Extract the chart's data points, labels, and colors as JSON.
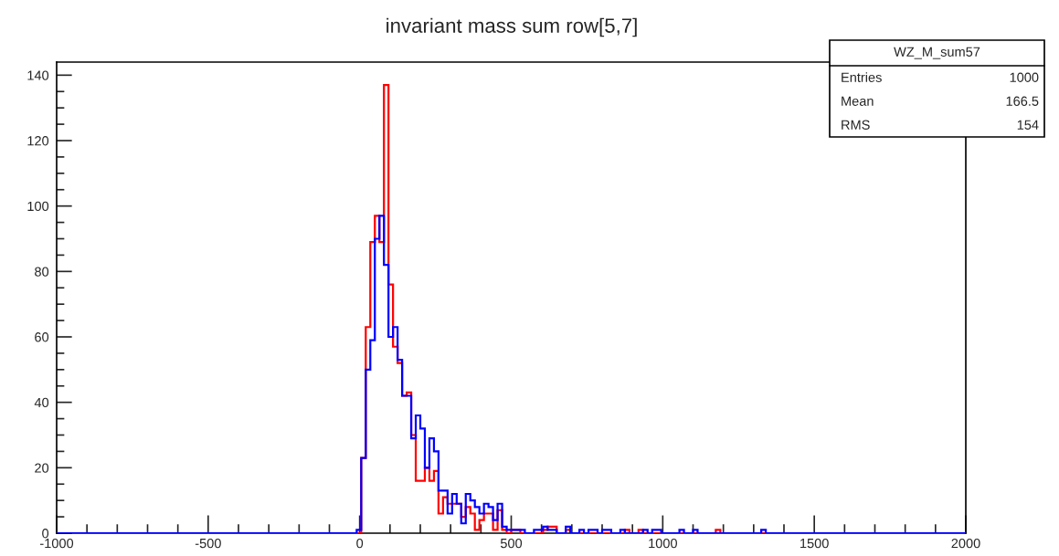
{
  "chart_data": {
    "type": "histogram",
    "title": "invariant mass sum row[5,7]",
    "bins": [
      -1000,
      -985,
      -970,
      -955,
      -940,
      -925,
      -910,
      -895,
      -880,
      -865,
      -850,
      -835,
      -820,
      -805,
      -790,
      -775,
      -760,
      -745,
      -730,
      -715,
      -700,
      -685,
      -670,
      -655,
      -640,
      -625,
      -610,
      -595,
      -580,
      -565,
      -550,
      -535,
      -520,
      -505,
      -490,
      -475,
      -460,
      -445,
      -430,
      -415,
      -400,
      -385,
      -370,
      -355,
      -340,
      -325,
      -310,
      -295,
      -280,
      -265,
      -250,
      -235,
      -220,
      -205,
      -190,
      -175,
      -160,
      -145,
      -130,
      -115,
      -100,
      -85,
      -70,
      -55,
      -40,
      -25,
      -10,
      5,
      20,
      35,
      50,
      65,
      80,
      95,
      110,
      125,
      140,
      155,
      170,
      185,
      200,
      215,
      230,
      245,
      260,
      275,
      290,
      305,
      320,
      335,
      350,
      365,
      380,
      395,
      410,
      425,
      440,
      455,
      470,
      485,
      500,
      515,
      530,
      545,
      560,
      575,
      590,
      605,
      620,
      635,
      650,
      665,
      680,
      695,
      710,
      725,
      740,
      755,
      770,
      785,
      800,
      815,
      830,
      845,
      860,
      875,
      890,
      905,
      920,
      935,
      950,
      965,
      980,
      995,
      1010,
      1025,
      1040,
      1055,
      1070,
      1085,
      1100,
      1115,
      1130,
      1145,
      1160,
      1175,
      1190,
      1205,
      1220,
      1235,
      1250,
      1265,
      1280,
      1295,
      1310,
      1325,
      1340,
      1355,
      1370,
      1385,
      1400,
      1415,
      1430,
      1445,
      1460,
      1475,
      1490,
      1505,
      1520,
      1535,
      1550,
      1565,
      1580,
      1595,
      1610,
      1625,
      1640,
      1655,
      1670,
      1685,
      1700,
      1715,
      1730,
      1745,
      1760,
      1775,
      1790,
      1805,
      1820,
      1835,
      1850,
      1865,
      1880,
      1895,
      1910,
      1925,
      1940,
      1955,
      1970,
      1985,
      2000
    ],
    "series": [
      {
        "color": "#ff0000",
        "values": [
          0,
          0,
          0,
          0,
          0,
          0,
          0,
          0,
          0,
          0,
          0,
          0,
          0,
          0,
          0,
          0,
          0,
          0,
          0,
          0,
          0,
          0,
          0,
          0,
          0,
          0,
          0,
          0,
          0,
          0,
          0,
          0,
          0,
          0,
          0,
          0,
          0,
          0,
          0,
          0,
          0,
          0,
          0,
          0,
          0,
          0,
          0,
          0,
          0,
          0,
          0,
          0,
          0,
          0,
          0,
          0,
          0,
          0,
          0,
          0,
          0,
          0,
          0,
          0,
          0,
          0,
          0,
          23,
          63,
          89,
          97,
          89,
          137,
          76,
          57,
          52,
          42,
          43,
          30,
          16,
          16,
          20,
          16,
          19,
          6,
          11,
          9,
          9,
          9,
          5,
          8,
          6,
          1,
          4,
          6,
          6,
          1,
          7,
          1,
          0,
          1,
          1,
          0,
          0,
          0,
          0,
          0,
          1,
          2,
          2,
          0,
          0,
          1,
          0,
          0,
          0,
          0,
          0,
          0,
          0,
          0,
          0,
          0,
          0,
          0,
          1,
          0,
          0,
          1,
          0,
          0,
          0,
          0,
          0,
          0,
          0,
          0,
          0,
          0,
          0,
          0,
          0,
          0,
          0,
          0,
          1,
          0,
          0,
          0,
          0,
          0,
          0,
          0,
          0,
          0,
          0,
          0,
          0,
          0,
          0,
          0,
          0,
          0,
          0,
          0,
          0,
          0,
          0,
          0,
          0,
          0,
          0,
          0,
          0,
          0,
          0,
          0,
          0,
          0,
          0,
          0,
          0,
          0,
          0,
          0,
          0,
          0,
          0,
          0,
          0,
          0,
          0,
          0,
          0,
          0,
          0,
          0,
          0,
          0,
          0
        ]
      },
      {
        "color": "#0000ff",
        "values": [
          0,
          0,
          0,
          0,
          0,
          0,
          0,
          0,
          0,
          0,
          0,
          0,
          0,
          0,
          0,
          0,
          0,
          0,
          0,
          0,
          0,
          0,
          0,
          0,
          0,
          0,
          0,
          0,
          0,
          0,
          0,
          0,
          0,
          0,
          0,
          0,
          0,
          0,
          0,
          0,
          0,
          0,
          0,
          0,
          0,
          0,
          0,
          0,
          0,
          0,
          0,
          0,
          0,
          0,
          0,
          0,
          0,
          0,
          0,
          0,
          0,
          0,
          0,
          0,
          0,
          0,
          1,
          23,
          50,
          59,
          90,
          97,
          82,
          60,
          63,
          53,
          42,
          42,
          29,
          36,
          32,
          20,
          29,
          25,
          13,
          13,
          6,
          12,
          9,
          3,
          12,
          10,
          8,
          6,
          9,
          8,
          4,
          9,
          2,
          1,
          1,
          1,
          1,
          0,
          0,
          1,
          1,
          2,
          1,
          1,
          0,
          0,
          2,
          0,
          0,
          1,
          0,
          1,
          1,
          0,
          1,
          1,
          0,
          0,
          1,
          0,
          0,
          0,
          0,
          1,
          0,
          1,
          1,
          0,
          0,
          0,
          0,
          1,
          0,
          0,
          1,
          0,
          0,
          0,
          0,
          0,
          0,
          0,
          0,
          0,
          0,
          0,
          0,
          0,
          0,
          1,
          0,
          0,
          0,
          0,
          0,
          0,
          0,
          0,
          0,
          0,
          0,
          0,
          0,
          0,
          0,
          0,
          0,
          0,
          0,
          0,
          0,
          0,
          0,
          0,
          0,
          0,
          0,
          0,
          0,
          0,
          0,
          0,
          0,
          0,
          0,
          0,
          0,
          0,
          0,
          0,
          0,
          0,
          0,
          0
        ]
      }
    ],
    "xlim": [
      -1000,
      2000
    ],
    "xticks": [
      -1000,
      {
        "value": -900,
        "label": null
      },
      {
        "value": -800,
        "label": null
      },
      {
        "value": -700,
        "label": null
      },
      {
        "value": -600,
        "label": null
      },
      -500,
      {
        "value": -400,
        "label": null
      },
      {
        "value": -300,
        "label": null
      },
      {
        "value": -200,
        "label": null
      },
      {
        "value": -100,
        "label": null
      },
      0,
      {
        "value": 100,
        "label": null
      },
      {
        "value": 200,
        "label": null
      },
      {
        "value": 300,
        "label": null
      },
      {
        "value": 400,
        "label": null
      },
      500,
      {
        "value": 600,
        "label": null
      },
      {
        "value": 700,
        "label": null
      },
      {
        "value": 800,
        "label": null
      },
      {
        "value": 900,
        "label": null
      },
      1000,
      {
        "value": 1100,
        "label": null
      },
      {
        "value": 1200,
        "label": null
      },
      {
        "value": 1300,
        "label": null
      },
      {
        "value": 1400,
        "label": null
      },
      1500,
      {
        "value": 1600,
        "label": null
      },
      {
        "value": 1700,
        "label": null
      },
      {
        "value": 1800,
        "label": null
      },
      {
        "value": 1900,
        "label": null
      },
      2000
    ],
    "ylim": [
      0,
      144
    ],
    "yticks": [
      0,
      {
        "value": 5,
        "label": null
      },
      {
        "value": 10,
        "label": null
      },
      {
        "value": 15,
        "label": null
      },
      20,
      {
        "value": 25,
        "label": null
      },
      {
        "value": 30,
        "label": null
      },
      {
        "value": 35,
        "label": null
      },
      40,
      {
        "value": 45,
        "label": null
      },
      {
        "value": 50,
        "label": null
      },
      {
        "value": 55,
        "label": null
      },
      60,
      {
        "value": 65,
        "label": null
      },
      {
        "value": 70,
        "label": null
      },
      {
        "value": 75,
        "label": null
      },
      80,
      {
        "value": 85,
        "label": null
      },
      {
        "value": 90,
        "label": null
      },
      {
        "value": 95,
        "label": null
      },
      100,
      {
        "value": 105,
        "label": null
      },
      {
        "value": 110,
        "label": null
      },
      {
        "value": 115,
        "label": null
      },
      120,
      {
        "value": 125,
        "label": null
      },
      {
        "value": 130,
        "label": null
      },
      {
        "value": 135,
        "label": null
      },
      140
    ],
    "grid": false,
    "annotations": [
      "WZ_M_sum57",
      "Entries",
      "1000",
      "Mean",
      "166.5",
      "RMS",
      "154"
    ]
  }
}
